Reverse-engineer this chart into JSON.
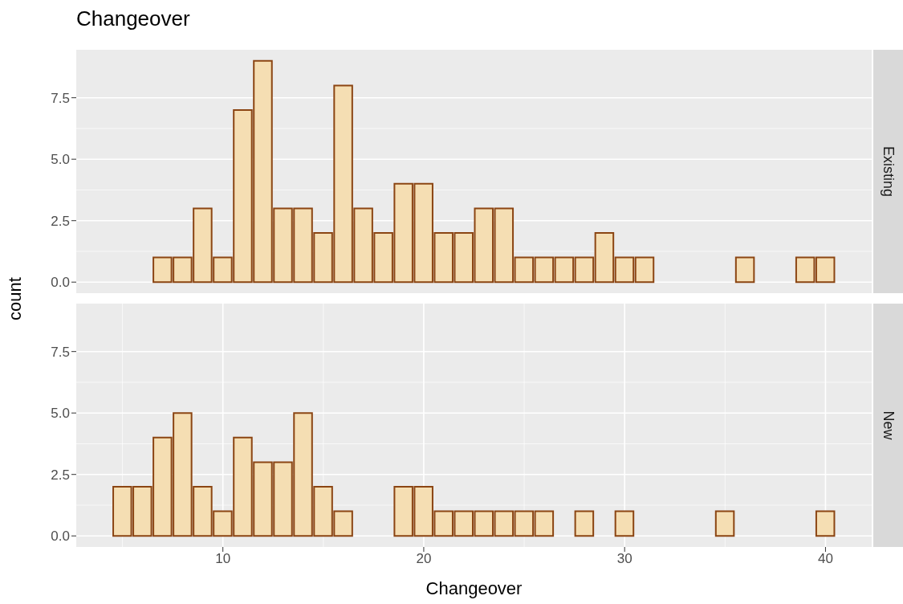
{
  "chart_data": [
    {
      "type": "histogram",
      "title": "Changeover",
      "annotations": [
        "Existing"
      ],
      "ylabel": "count",
      "color": "#f5deb3",
      "bins": [
        4.5,
        5.5,
        6.5,
        7.5,
        8.5,
        9.5,
        10.5,
        11.5,
        12.5,
        13.5,
        14.5,
        15.5,
        16.5,
        17.5,
        18.5,
        19.5,
        20.5,
        21.5,
        22.5,
        23.5,
        24.5,
        25.5,
        26.5,
        27.5,
        28.5,
        29.5,
        30.5,
        31.5,
        32.5,
        33.5,
        34.5,
        35.5,
        36.5,
        37.5,
        38.5,
        39.5,
        40.5
      ],
      "values": [
        0,
        0,
        1,
        1,
        3,
        1,
        7,
        9,
        3,
        3,
        2,
        8,
        3,
        2,
        4,
        4,
        2,
        2,
        3,
        3,
        1,
        1,
        1,
        1,
        2,
        1,
        1,
        0,
        0,
        0,
        0,
        1,
        0,
        0,
        1,
        1
      ],
      "xlim": [
        2.7,
        42.3
      ],
      "xticks": [
        10,
        20,
        30,
        40
      ],
      "ylim": [
        -0.45,
        9.45
      ],
      "yticks": [
        {
          "value": 0,
          "label": "0.0"
        },
        {
          "value": 2.5,
          "label": "2.5"
        },
        {
          "value": 5,
          "label": "5.0"
        },
        {
          "value": 7.5,
          "label": "7.5"
        }
      ],
      "grid": true,
      "tick_labels": "y"
    },
    {
      "type": "histogram",
      "annotations": [
        "New"
      ],
      "xlabel": "Changeover",
      "color": "#f5deb3",
      "bins": [
        4.5,
        5.5,
        6.5,
        7.5,
        8.5,
        9.5,
        10.5,
        11.5,
        12.5,
        13.5,
        14.5,
        15.5,
        16.5,
        17.5,
        18.5,
        19.5,
        20.5,
        21.5,
        22.5,
        23.5,
        24.5,
        25.5,
        26.5,
        27.5,
        28.5,
        29.5,
        30.5,
        31.5,
        32.5,
        33.5,
        34.5,
        35.5,
        36.5,
        37.5,
        38.5,
        39.5,
        40.5
      ],
      "values": [
        2,
        2,
        4,
        5,
        2,
        1,
        4,
        3,
        3,
        5,
        2,
        1,
        0,
        0,
        2,
        2,
        1,
        1,
        1,
        1,
        1,
        1,
        0,
        1,
        0,
        1,
        0,
        0,
        0,
        0,
        1,
        0,
        0,
        0,
        0,
        1
      ],
      "xlim": [
        2.7,
        42.3
      ],
      "xticks": [
        10,
        20,
        30,
        40
      ],
      "ylim": [
        -0.45,
        9.45
      ],
      "yticks": [
        {
          "value": 0,
          "label": "0.0"
        },
        {
          "value": 2.5,
          "label": "2.5"
        },
        {
          "value": 5,
          "label": "5.0"
        },
        {
          "value": 7.5,
          "label": "7.5"
        }
      ],
      "grid": true
    }
  ]
}
